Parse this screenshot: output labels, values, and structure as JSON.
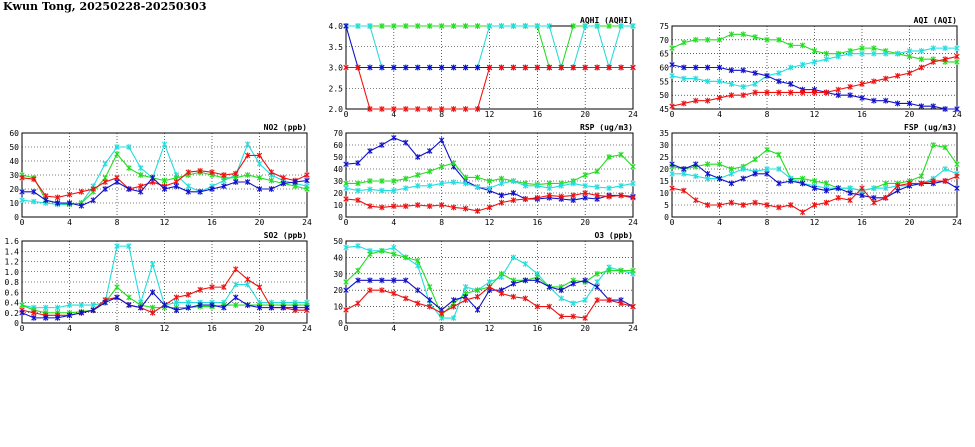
{
  "header": {
    "title": "Kwun Tong, 20250228-20250303"
  },
  "colors": {
    "series_1": "#ee1111",
    "series_2": "#1111cc",
    "series_3": "#22dd22",
    "series_4": "#22dddd"
  },
  "chart_data": [
    {
      "id": "aqhi",
      "type": "line",
      "title": "AQHI (AQHI)",
      "xlim": [
        0,
        24
      ],
      "ylim": [
        2,
        4
      ],
      "grid": true,
      "xticks": [
        0,
        4,
        8,
        12,
        16,
        20,
        24
      ],
      "yticks": [
        2.0,
        2.5,
        3.0,
        3.5,
        4.0
      ],
      "ytick_labels": [
        "2.0",
        "2.5",
        "3.0",
        "3.5",
        "4.0"
      ],
      "series": [
        {
          "color": "#22dd22",
          "values": [
            4,
            4,
            4,
            4,
            4,
            4,
            4,
            4,
            4,
            4,
            4,
            4,
            4,
            4,
            4,
            4,
            4,
            3,
            3,
            4,
            4,
            4,
            4,
            4,
            4
          ]
        },
        {
          "color": "#22dddd",
          "values": [
            4,
            4,
            4,
            3,
            3,
            3,
            3,
            3,
            3,
            3,
            3,
            3,
            4,
            4,
            4,
            4,
            4,
            4,
            3,
            3,
            4,
            4,
            3,
            4,
            4
          ]
        },
        {
          "color": "#1111cc",
          "values": [
            4,
            3,
            3,
            3,
            3,
            3,
            3,
            3,
            3,
            3,
            3,
            3,
            3,
            3,
            3,
            3,
            3,
            3,
            3,
            3,
            3,
            3,
            3,
            3,
            3
          ]
        },
        {
          "color": "#ee1111",
          "values": [
            3,
            3,
            2,
            2,
            2,
            2,
            2,
            2,
            2,
            2,
            2,
            2,
            3,
            3,
            3,
            3,
            3,
            3,
            3,
            3,
            3,
            3,
            3,
            3,
            3
          ]
        }
      ]
    },
    {
      "id": "aqi",
      "type": "line",
      "title": "AQI (AQI)",
      "xlim": [
        0,
        24
      ],
      "ylim": [
        45,
        75
      ],
      "grid": true,
      "xticks": [
        0,
        4,
        8,
        12,
        16,
        20,
        24
      ],
      "yticks": [
        45,
        50,
        55,
        60,
        65,
        70,
        75
      ],
      "ytick_labels": [
        "45",
        "50",
        "55",
        "60",
        "65",
        "70",
        "75"
      ],
      "series": [
        {
          "color": "#22dd22",
          "values": [
            67,
            69,
            70,
            70,
            70,
            72,
            72,
            71,
            70,
            70,
            68,
            68,
            66,
            65,
            65,
            66,
            67,
            67,
            66,
            65,
            64,
            63,
            63,
            62,
            62
          ]
        },
        {
          "color": "#22dddd",
          "values": [
            57,
            56,
            56,
            55,
            55,
            54,
            53,
            54,
            57,
            58,
            60,
            61,
            62,
            63,
            64,
            65,
            65,
            65,
            65,
            65,
            66,
            66,
            67,
            67,
            67
          ]
        },
        {
          "color": "#1111cc",
          "values": [
            61,
            60,
            60,
            60,
            60,
            59,
            59,
            58,
            57,
            55,
            54,
            52,
            52,
            51,
            50,
            50,
            49,
            48,
            48,
            47,
            47,
            46,
            46,
            45,
            45
          ]
        },
        {
          "color": "#ee1111",
          "values": [
            46,
            47,
            48,
            48,
            49,
            50,
            50,
            51,
            51,
            51,
            51,
            51,
            51,
            51,
            52,
            53,
            54,
            55,
            56,
            57,
            58,
            60,
            62,
            63,
            64
          ]
        }
      ]
    },
    {
      "id": "no2",
      "type": "line",
      "title": "NO2 (ppb)",
      "xlim": [
        0,
        24
      ],
      "ylim": [
        0,
        60
      ],
      "grid": true,
      "xticks": [
        0,
        4,
        8,
        12,
        16,
        20,
        24
      ],
      "yticks": [
        0,
        10,
        20,
        30,
        40,
        50,
        60
      ],
      "ytick_labels": [
        "0",
        "10",
        "20",
        "30",
        "40",
        "50",
        "60"
      ],
      "series": [
        {
          "color": "#22dddd",
          "values": [
            12,
            11,
            10,
            9,
            9,
            10,
            22,
            38,
            50,
            50,
            35,
            28,
            52,
            30,
            22,
            18,
            22,
            26,
            30,
            52,
            38,
            30,
            26,
            24,
            22
          ]
        },
        {
          "color": "#22dd22",
          "values": [
            30,
            28,
            12,
            10,
            9,
            10,
            18,
            28,
            45,
            35,
            30,
            28,
            26,
            28,
            30,
            32,
            30,
            28,
            28,
            30,
            28,
            26,
            24,
            22,
            20
          ]
        },
        {
          "color": "#ee1111",
          "values": [
            28,
            27,
            15,
            14,
            16,
            18,
            20,
            25,
            28,
            20,
            22,
            25,
            22,
            25,
            32,
            33,
            32,
            30,
            31,
            44,
            44,
            32,
            28,
            26,
            30
          ]
        },
        {
          "color": "#1111cc",
          "values": [
            18,
            18,
            12,
            10,
            10,
            8,
            12,
            20,
            25,
            20,
            18,
            28,
            20,
            22,
            18,
            18,
            20,
            22,
            25,
            25,
            20,
            20,
            24,
            25,
            26
          ]
        }
      ]
    },
    {
      "id": "rsp",
      "type": "line",
      "title": "RSP (ug/m3)",
      "xlim": [
        0,
        24
      ],
      "ylim": [
        0,
        70
      ],
      "grid": true,
      "xticks": [
        0,
        4,
        8,
        12,
        16,
        20,
        24
      ],
      "yticks": [
        0,
        10,
        20,
        30,
        40,
        50,
        60,
        70
      ],
      "ytick_labels": [
        "0",
        "10",
        "20",
        "30",
        "40",
        "50",
        "60",
        "70"
      ],
      "series": [
        {
          "color": "#1111cc",
          "values": [
            44,
            45,
            55,
            60,
            66,
            62,
            50,
            55,
            64,
            42,
            30,
            25,
            22,
            18,
            20,
            15,
            15,
            16,
            15,
            14,
            16,
            15,
            18,
            18,
            17
          ]
        },
        {
          "color": "#22dd22",
          "values": [
            28,
            28,
            30,
            30,
            30,
            32,
            35,
            38,
            42,
            45,
            33,
            33,
            30,
            32,
            30,
            28,
            27,
            28,
            28,
            30,
            35,
            38,
            50,
            52,
            42
          ]
        },
        {
          "color": "#22dddd",
          "values": [
            24,
            22,
            23,
            22,
            22,
            24,
            26,
            26,
            28,
            29,
            28,
            25,
            24,
            28,
            30,
            26,
            26,
            24,
            26,
            28,
            26,
            25,
            24,
            26,
            28
          ]
        },
        {
          "color": "#ee1111",
          "values": [
            15,
            14,
            9,
            8,
            9,
            9,
            10,
            9,
            10,
            8,
            7,
            5,
            8,
            12,
            14,
            15,
            16,
            18,
            17,
            18,
            20,
            18,
            17,
            18,
            16
          ]
        }
      ]
    },
    {
      "id": "fsp",
      "type": "line",
      "title": "FSP (ug/m3)",
      "xlim": [
        0,
        24
      ],
      "ylim": [
        0,
        35
      ],
      "grid": true,
      "xticks": [
        0,
        4,
        8,
        12,
        16,
        20,
        24
      ],
      "yticks": [
        0,
        5,
        10,
        15,
        20,
        25,
        30,
        35
      ],
      "ytick_labels": [
        "0",
        "5",
        "10",
        "15",
        "20",
        "25",
        "30",
        "35"
      ],
      "series": [
        {
          "color": "#22dd22",
          "values": [
            21,
            20,
            21,
            22,
            22,
            20,
            21,
            24,
            28,
            26,
            16,
            16,
            15,
            14,
            12,
            12,
            11,
            12,
            14,
            14,
            15,
            17,
            30,
            29,
            22
          ]
        },
        {
          "color": "#22dddd",
          "values": [
            18,
            18,
            17,
            16,
            16,
            18,
            20,
            19,
            20,
            20,
            16,
            14,
            13,
            12,
            12,
            12,
            11,
            12,
            12,
            13,
            13,
            14,
            16,
            20,
            18
          ]
        },
        {
          "color": "#1111cc",
          "values": [
            22,
            20,
            22,
            18,
            16,
            14,
            16,
            18,
            18,
            14,
            15,
            14,
            12,
            11,
            12,
            10,
            9,
            8,
            8,
            11,
            13,
            14,
            14,
            15,
            12
          ]
        },
        {
          "color": "#ee1111",
          "values": [
            12,
            11,
            7,
            5,
            5,
            6,
            5,
            6,
            5,
            4,
            5,
            2,
            5,
            6,
            8,
            7,
            12,
            6,
            8,
            13,
            14,
            14,
            15,
            15,
            17
          ]
        }
      ]
    },
    {
      "id": "so2",
      "type": "line",
      "title": "SO2 (ppb)",
      "xlim": [
        0,
        24
      ],
      "ylim": [
        0,
        1.6
      ],
      "grid": true,
      "xticks": [
        0,
        4,
        8,
        12,
        16,
        20,
        24
      ],
      "yticks": [
        0,
        0.2,
        0.4,
        0.6,
        0.8,
        1.0,
        1.2,
        1.4,
        1.6
      ],
      "ytick_labels": [
        "0",
        "0.2",
        "0.4",
        "0.6",
        "0.8",
        "1.0",
        "1.2",
        "1.4",
        "1.6"
      ],
      "series": [
        {
          "color": "#22dddd",
          "values": [
            0.35,
            0.3,
            0.3,
            0.3,
            0.35,
            0.35,
            0.35,
            0.4,
            1.5,
            1.5,
            0.4,
            1.15,
            0.35,
            0.4,
            0.4,
            0.4,
            0.4,
            0.4,
            0.75,
            0.75,
            0.4,
            0.4,
            0.4,
            0.4,
            0.4
          ]
        },
        {
          "color": "#22dd22",
          "values": [
            0.35,
            0.25,
            0.2,
            0.2,
            0.2,
            0.22,
            0.25,
            0.4,
            0.7,
            0.5,
            0.35,
            0.3,
            0.3,
            0.3,
            0.3,
            0.32,
            0.32,
            0.35,
            0.35,
            0.35,
            0.35,
            0.35,
            0.35,
            0.35,
            0.35
          ]
        },
        {
          "color": "#ee1111",
          "values": [
            0.25,
            0.2,
            0.15,
            0.15,
            0.15,
            0.2,
            0.25,
            0.45,
            0.5,
            0.35,
            0.3,
            0.2,
            0.35,
            0.5,
            0.55,
            0.65,
            0.7,
            0.7,
            1.05,
            0.85,
            0.7,
            0.3,
            0.3,
            0.25,
            0.25
          ]
        },
        {
          "color": "#1111cc",
          "values": [
            0.2,
            0.1,
            0.1,
            0.1,
            0.15,
            0.2,
            0.25,
            0.4,
            0.5,
            0.35,
            0.3,
            0.6,
            0.35,
            0.25,
            0.3,
            0.35,
            0.35,
            0.3,
            0.5,
            0.35,
            0.3,
            0.3,
            0.3,
            0.3,
            0.3
          ]
        }
      ]
    },
    {
      "id": "o3",
      "type": "line",
      "title": "O3 (ppb)",
      "xlim": [
        0,
        24
      ],
      "ylim": [
        0,
        50
      ],
      "grid": true,
      "xticks": [
        0,
        4,
        8,
        12,
        16,
        20,
        24
      ],
      "yticks": [
        0,
        10,
        20,
        30,
        40,
        50
      ],
      "ytick_labels": [
        "0",
        "10",
        "20",
        "30",
        "40",
        "50"
      ],
      "series": [
        {
          "color": "#22dddd",
          "values": [
            46,
            47,
            44,
            44,
            46,
            40,
            35,
            12,
            3,
            3,
            22,
            20,
            25,
            28,
            40,
            36,
            30,
            22,
            15,
            12,
            14,
            25,
            34,
            32,
            30
          ]
        },
        {
          "color": "#22dd22",
          "values": [
            25,
            32,
            42,
            44,
            42,
            40,
            38,
            22,
            5,
            12,
            18,
            20,
            22,
            30,
            26,
            26,
            28,
            22,
            22,
            26,
            25,
            30,
            32,
            32,
            32
          ]
        },
        {
          "color": "#1111cc",
          "values": [
            20,
            26,
            26,
            26,
            26,
            26,
            20,
            14,
            8,
            14,
            16,
            8,
            20,
            20,
            24,
            26,
            26,
            22,
            20,
            24,
            26,
            22,
            14,
            14,
            10
          ]
        },
        {
          "color": "#ee1111",
          "values": [
            8,
            12,
            20,
            20,
            18,
            15,
            12,
            10,
            6,
            10,
            14,
            16,
            22,
            18,
            16,
            15,
            10,
            10,
            4,
            4,
            3,
            14,
            14,
            12,
            10
          ]
        }
      ]
    }
  ]
}
